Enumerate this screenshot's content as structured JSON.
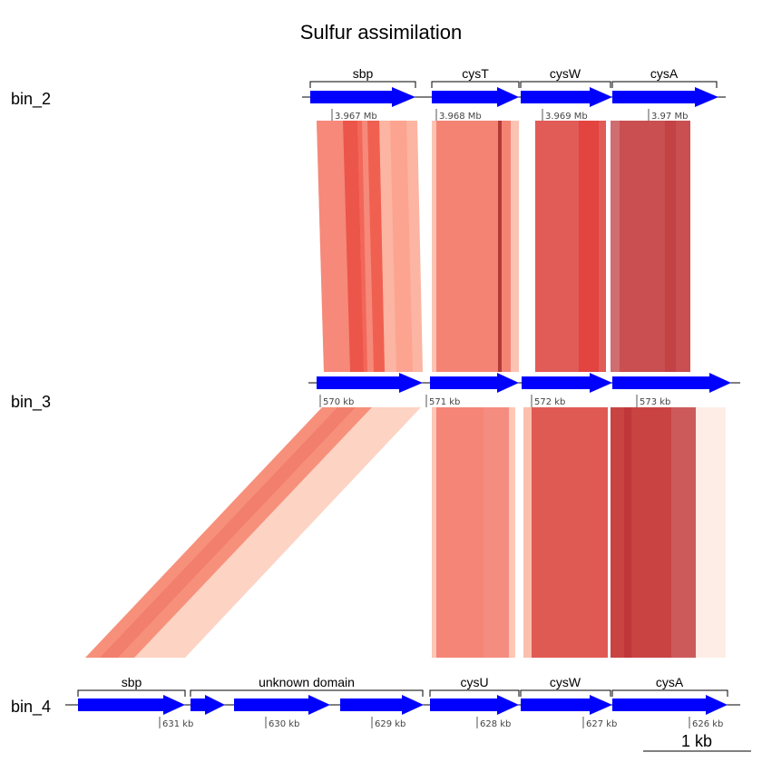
{
  "title": "Sulfur assimilation",
  "genomes": [
    {
      "name": "bin_2"
    },
    {
      "name": "bin_3"
    },
    {
      "name": "bin_4"
    }
  ],
  "gene_labels": {
    "bin_2": [
      "sbp",
      "cysT",
      "cysW",
      "cysA"
    ],
    "bin_4": [
      "sbp",
      "unknown domain",
      "cysU",
      "cysW",
      "cysA"
    ]
  },
  "coordinate_ticks": {
    "bin_2": [
      "3.967 Mb",
      "3.968 Mb",
      "3.969 Mb",
      "3.97 Mb"
    ],
    "bin_3": [
      "570 kb",
      "571 kb",
      "572 kb",
      "573 kb"
    ],
    "bin_4": [
      "631 kb",
      "630 kb",
      "629 kb",
      "628 kb",
      "627 kb",
      "626 kb"
    ]
  },
  "scale_bar": {
    "label": "1 kb"
  },
  "colors": {
    "gene_arrow": "#0000ff",
    "strip_light": "#fdd0c0",
    "strip_mid": "#f48472",
    "strip_dark": "#c94a48"
  }
}
